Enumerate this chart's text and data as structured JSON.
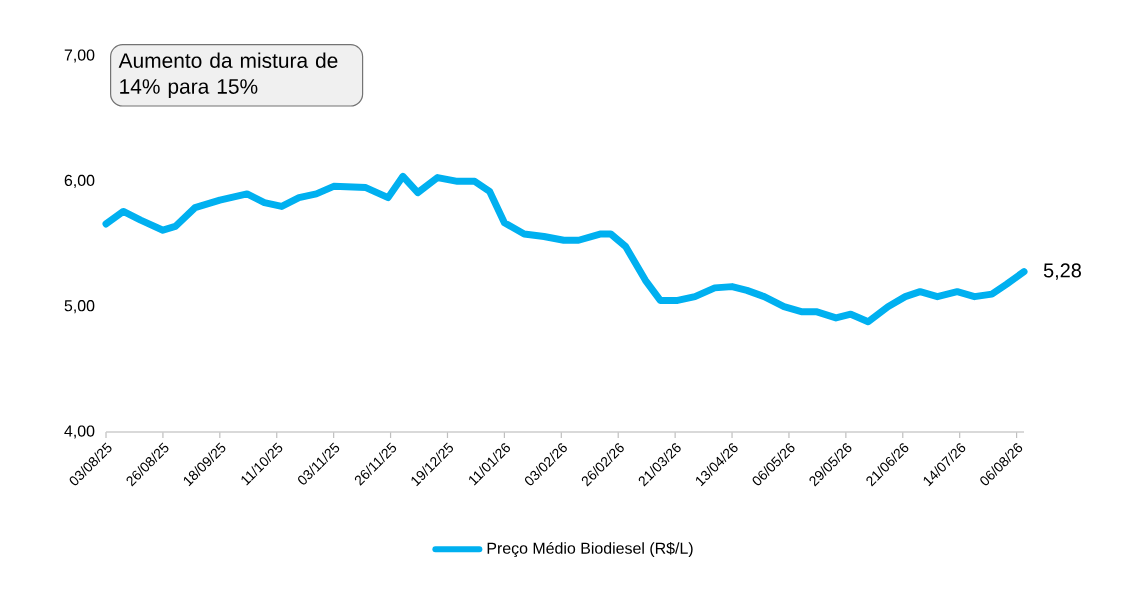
{
  "chart_data": {
    "type": "line",
    "x": [
      "2025-08-03",
      "2025-08-10",
      "2025-08-17",
      "2025-08-26",
      "2025-08-31",
      "2025-09-08",
      "2025-09-18",
      "2025-09-29",
      "2025-10-06",
      "2025-10-13",
      "2025-10-20",
      "2025-10-27",
      "2025-11-03",
      "2025-11-16",
      "2025-11-25",
      "2025-12-01",
      "2025-12-07",
      "2025-12-15",
      "2025-12-23",
      "2025-12-30",
      "2026-01-05",
      "2026-01-11",
      "2026-01-19",
      "2026-01-27",
      "2026-02-04",
      "2026-02-10",
      "2026-02-19",
      "2026-02-23",
      "2026-03-01",
      "2026-03-09",
      "2026-03-15",
      "2026-03-22",
      "2026-03-29",
      "2026-04-06",
      "2026-04-13",
      "2026-04-19",
      "2026-04-26",
      "2026-05-04",
      "2026-05-11",
      "2026-05-17",
      "2026-05-25",
      "2026-05-31",
      "2026-06-07",
      "2026-06-15",
      "2026-06-22",
      "2026-06-28",
      "2026-07-05",
      "2026-07-13",
      "2026-07-20",
      "2026-07-27",
      "2026-08-02",
      "2026-08-09"
    ],
    "series": [
      {
        "name": "Preço Médio Biodiesel (R$/L)",
        "color": "#00b0f0",
        "values": [
          5.66,
          5.76,
          5.69,
          5.61,
          5.64,
          5.79,
          5.85,
          5.9,
          5.83,
          5.8,
          5.87,
          5.9,
          5.96,
          5.95,
          5.87,
          6.04,
          5.91,
          6.03,
          6.0,
          6.0,
          5.92,
          5.67,
          5.58,
          5.56,
          5.53,
          5.53,
          5.58,
          5.58,
          5.48,
          5.21,
          5.05,
          5.05,
          5.08,
          5.15,
          5.16,
          5.13,
          5.08,
          5.0,
          4.96,
          4.96,
          4.91,
          4.94,
          4.88,
          5.0,
          5.08,
          5.12,
          5.08,
          5.12,
          5.08,
          5.1,
          5.18,
          5.28
        ]
      }
    ],
    "xlim": [
      "2025-08-03",
      "2026-08-09"
    ],
    "xticks": [
      {
        "value": "2025-08-03",
        "label": "03/08/25"
      },
      {
        "value": "2025-08-26",
        "label": "26/08/25"
      },
      {
        "value": "2025-09-18",
        "label": "18/09/25"
      },
      {
        "value": "2025-10-11",
        "label": "11/10/25"
      },
      {
        "value": "2025-11-03",
        "label": "03/11/25"
      },
      {
        "value": "2025-11-26",
        "label": "26/11/25"
      },
      {
        "value": "2025-12-19",
        "label": "19/12/25"
      },
      {
        "value": "2026-01-11",
        "label": "11/01/26"
      },
      {
        "value": "2026-02-03",
        "label": "03/02/26"
      },
      {
        "value": "2026-02-26",
        "label": "26/02/26"
      },
      {
        "value": "2026-03-21",
        "label": "21/03/26"
      },
      {
        "value": "2026-04-13",
        "label": "13/04/26"
      },
      {
        "value": "2026-05-06",
        "label": "06/05/26"
      },
      {
        "value": "2026-05-29",
        "label": "29/05/26"
      },
      {
        "value": "2026-06-21",
        "label": "21/06/26"
      },
      {
        "value": "2026-07-14",
        "label": "14/07/26"
      },
      {
        "value": "2026-08-06",
        "label": "06/08/26"
      }
    ],
    "ylim": [
      4,
      7
    ],
    "yticks": [
      {
        "value": 4,
        "label": "4,00"
      },
      {
        "value": 5,
        "label": "5,00"
      },
      {
        "value": 6,
        "label": "6,00"
      },
      {
        "value": 7,
        "label": "7,00"
      }
    ],
    "annotations": [
      "Aumento da mistura de 14% para 15%",
      {
        "text": "5,28",
        "x": "2026-08-09",
        "y": 5.28
      }
    ],
    "legend": "bottom",
    "grid": false,
    "line_style": "solid"
  }
}
